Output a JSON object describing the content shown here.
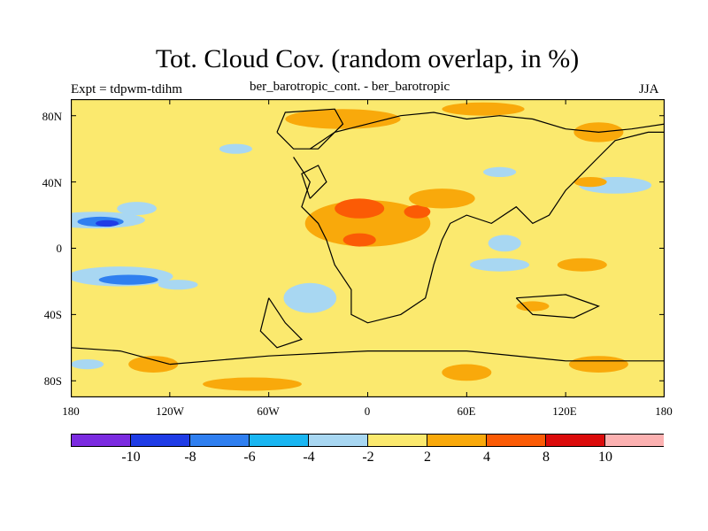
{
  "title": "Tot. Cloud Cov. (random overlap, in %)",
  "left_label": "Expt = tdpwm-tdihm",
  "center_label": "ber_barotropic_cont. - ber_barotropic",
  "right_label": "JJA",
  "y_ticks": [
    {
      "label": "80N",
      "value": 80
    },
    {
      "label": "40N",
      "value": 40
    },
    {
      "label": "0",
      "value": 0
    },
    {
      "label": "40S",
      "value": -40
    },
    {
      "label": "80S",
      "value": -80
    }
  ],
  "x_ticks": [
    {
      "label": "180",
      "value": -180
    },
    {
      "label": "120W",
      "value": -120
    },
    {
      "label": "60W",
      "value": -60
    },
    {
      "label": "0",
      "value": 0
    },
    {
      "label": "60E",
      "value": 60
    },
    {
      "label": "120E",
      "value": 120
    },
    {
      "label": "180",
      "value": 180
    }
  ],
  "colorbar": {
    "colors": [
      "#7b2be0",
      "#1f3ce6",
      "#2f7ff0",
      "#19b6f2",
      "#a8d7f2",
      "#fbe96e",
      "#f9a90b",
      "#fb5b05",
      "#db0b0b",
      "#fcb1b1"
    ],
    "labels": [
      "-10",
      "-8",
      "-6",
      "-4",
      "-2",
      "2",
      "4",
      "8",
      "10"
    ]
  },
  "map": {
    "lon_range": [
      -180,
      180
    ],
    "lat_range": [
      -90,
      90
    ],
    "background_color": "#fbe96e",
    "field": [
      {
        "level": "-4",
        "color": "#a8d7f2",
        "lon": -165,
        "lat": 17,
        "rx": 30,
        "ry": 5
      },
      {
        "level": "-6",
        "color": "#2f7ff0",
        "lon": -162,
        "lat": 16,
        "rx": 14,
        "ry": 3
      },
      {
        "level": "-8",
        "color": "#1f3ce6",
        "lon": -158,
        "lat": 15,
        "rx": 7,
        "ry": 2
      },
      {
        "level": "-4",
        "color": "#a8d7f2",
        "lon": -140,
        "lat": 24,
        "rx": 12,
        "ry": 4
      },
      {
        "level": "-4",
        "color": "#a8d7f2",
        "lon": -150,
        "lat": -17,
        "rx": 32,
        "ry": 6
      },
      {
        "level": "-6",
        "color": "#2f7ff0",
        "lon": -145,
        "lat": -19,
        "rx": 18,
        "ry": 3
      },
      {
        "level": "-4",
        "color": "#a8d7f2",
        "lon": -115,
        "lat": -22,
        "rx": 12,
        "ry": 3
      },
      {
        "level": "-4",
        "color": "#a8d7f2",
        "lon": -35,
        "lat": -30,
        "rx": 16,
        "ry": 9
      },
      {
        "level": "-4",
        "color": "#a8d7f2",
        "lon": 80,
        "lat": -10,
        "rx": 18,
        "ry": 4
      },
      {
        "level": "-4",
        "color": "#a8d7f2",
        "lon": 83,
        "lat": 3,
        "rx": 10,
        "ry": 5
      },
      {
        "level": "-4",
        "color": "#a8d7f2",
        "lon": 150,
        "lat": 38,
        "rx": 22,
        "ry": 5
      },
      {
        "level": "-4",
        "color": "#a8d7f2",
        "lon": 80,
        "lat": 46,
        "rx": 10,
        "ry": 3
      },
      {
        "level": "-4",
        "color": "#a8d7f2",
        "lon": -80,
        "lat": 60,
        "rx": 10,
        "ry": 3
      },
      {
        "level": "-4",
        "color": "#a8d7f2",
        "lon": -170,
        "lat": -70,
        "rx": 10,
        "ry": 3
      },
      {
        "level": "4",
        "color": "#f9a90b",
        "lon": 0,
        "lat": 15,
        "rx": 38,
        "ry": 14
      },
      {
        "level": "8",
        "color": "#fb5b05",
        "lon": -5,
        "lat": 24,
        "rx": 15,
        "ry": 6
      },
      {
        "level": "8",
        "color": "#fb5b05",
        "lon": -5,
        "lat": 5,
        "rx": 10,
        "ry": 4
      },
      {
        "level": "8",
        "color": "#fb5b05",
        "lon": 30,
        "lat": 22,
        "rx": 8,
        "ry": 4
      },
      {
        "level": "4",
        "color": "#f9a90b",
        "lon": 45,
        "lat": 30,
        "rx": 20,
        "ry": 6
      },
      {
        "level": "4",
        "color": "#f9a90b",
        "lon": -15,
        "lat": 78,
        "rx": 35,
        "ry": 6
      },
      {
        "level": "4",
        "color": "#f9a90b",
        "lon": 70,
        "lat": 84,
        "rx": 25,
        "ry": 4
      },
      {
        "level": "4",
        "color": "#f9a90b",
        "lon": 140,
        "lat": 70,
        "rx": 15,
        "ry": 6
      },
      {
        "level": "4",
        "color": "#f9a90b",
        "lon": 135,
        "lat": 40,
        "rx": 10,
        "ry": 3
      },
      {
        "level": "4",
        "color": "#f9a90b",
        "lon": 140,
        "lat": -70,
        "rx": 18,
        "ry": 5
      },
      {
        "level": "4",
        "color": "#f9a90b",
        "lon": 60,
        "lat": -75,
        "rx": 15,
        "ry": 5
      },
      {
        "level": "4",
        "color": "#f9a90b",
        "lon": 100,
        "lat": -35,
        "rx": 10,
        "ry": 3
      },
      {
        "level": "4",
        "color": "#f9a90b",
        "lon": 130,
        "lat": -10,
        "rx": 15,
        "ry": 4
      },
      {
        "level": "4",
        "color": "#f9a90b",
        "lon": -70,
        "lat": -82,
        "rx": 30,
        "ry": 4
      },
      {
        "level": "4",
        "color": "#f9a90b",
        "lon": -130,
        "lat": -70,
        "rx": 15,
        "ry": 5
      }
    ],
    "coastlines": [
      [
        [
          -55,
          70
        ],
        [
          -50,
          82
        ],
        [
          -20,
          84
        ],
        [
          -15,
          75
        ],
        [
          -30,
          60
        ],
        [
          -45,
          60
        ],
        [
          -55,
          70
        ]
      ],
      [
        [
          -45,
          55
        ],
        [
          -35,
          40
        ],
        [
          -40,
          25
        ],
        [
          -30,
          15
        ],
        [
          -25,
          5
        ],
        [
          -20,
          -10
        ],
        [
          -10,
          -25
        ],
        [
          -10,
          -40
        ],
        [
          0,
          -45
        ],
        [
          20,
          -40
        ],
        [
          35,
          -30
        ],
        [
          40,
          -10
        ],
        [
          45,
          5
        ],
        [
          50,
          15
        ],
        [
          60,
          20
        ],
        [
          75,
          15
        ],
        [
          90,
          25
        ],
        [
          100,
          15
        ],
        [
          110,
          20
        ],
        [
          120,
          35
        ],
        [
          130,
          45
        ],
        [
          140,
          55
        ],
        [
          150,
          65
        ],
        [
          170,
          70
        ],
        [
          180,
          70
        ]
      ],
      [
        [
          -35,
          60
        ],
        [
          -20,
          70
        ],
        [
          0,
          75
        ],
        [
          20,
          80
        ],
        [
          40,
          82
        ],
        [
          60,
          78
        ],
        [
          80,
          80
        ],
        [
          100,
          78
        ],
        [
          120,
          72
        ],
        [
          140,
          70
        ],
        [
          160,
          72
        ],
        [
          180,
          75
        ]
      ],
      [
        [
          -60,
          -30
        ],
        [
          -50,
          -45
        ],
        [
          -40,
          -55
        ],
        [
          -55,
          -60
        ],
        [
          -65,
          -50
        ],
        [
          -60,
          -30
        ]
      ],
      [
        [
          -120,
          -70
        ],
        [
          -60,
          -65
        ],
        [
          0,
          -62
        ],
        [
          60,
          -62
        ],
        [
          120,
          -68
        ],
        [
          180,
          -68
        ]
      ],
      [
        [
          -180,
          -60
        ],
        [
          -150,
          -62
        ],
        [
          -120,
          -70
        ]
      ],
      [
        [
          90,
          -30
        ],
        [
          120,
          -28
        ],
        [
          140,
          -35
        ],
        [
          125,
          -42
        ],
        [
          100,
          -40
        ],
        [
          90,
          -30
        ]
      ],
      [
        [
          -35,
          30
        ],
        [
          -25,
          40
        ],
        [
          -30,
          50
        ],
        [
          -40,
          45
        ],
        [
          -35,
          30
        ]
      ]
    ]
  }
}
